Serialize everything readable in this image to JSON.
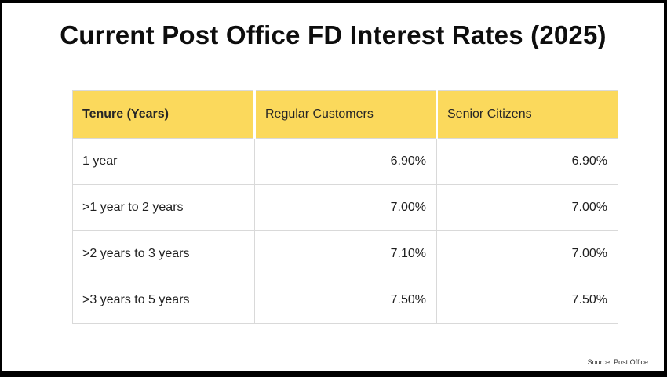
{
  "title": "Current Post Office FD Interest Rates (2025)",
  "source": "Source:  Post Office",
  "colors": {
    "header_bg": "#FBD95C",
    "frame_border": "#000000",
    "grid_line": "#d9d9d9",
    "text": "#1f1f1f"
  },
  "chart_data": {
    "type": "table",
    "title": "Current Post Office FD Interest Rates (2025)",
    "columns": [
      "Tenure (Years)",
      "Regular Customers",
      "Senior Citizens"
    ],
    "rows": [
      [
        "1 year",
        "6.90%",
        "6.90%"
      ],
      [
        ">1 year to 2 years",
        "7.00%",
        "7.00%"
      ],
      [
        ">2 years to 3 years",
        "7.10%",
        "7.00%"
      ],
      [
        ">3 years to 5 years",
        "7.50%",
        "7.50%"
      ]
    ],
    "source": "Source:  Post Office",
    "layout": "header row highlighted yellow; tenure column left-aligned; rate columns right-aligned"
  }
}
